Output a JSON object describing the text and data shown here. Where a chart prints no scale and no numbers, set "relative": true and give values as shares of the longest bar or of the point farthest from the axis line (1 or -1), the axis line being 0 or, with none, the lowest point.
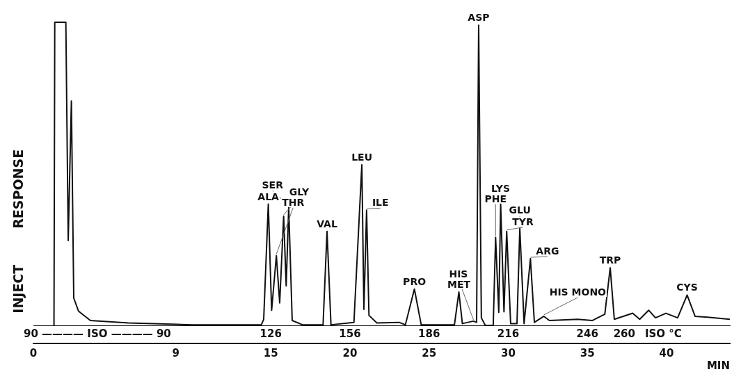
{
  "chart_data": {
    "type": "line",
    "ylabel": "RESPONSE",
    "xlabel": "MIN",
    "color": "#111111",
    "relative": true,
    "grid": false,
    "legend": false,
    "marker": "none",
    "line_style": "solid",
    "xlim": [
      0,
      44
    ],
    "xticks": [
      0,
      9,
      15,
      20,
      25,
      30,
      35,
      40
    ],
    "x2lim": [
      36,
      300
    ],
    "x2ticks": [
      126,
      156,
      186,
      216,
      246,
      260
    ],
    "x": [
      1.3,
      1.35,
      2.05,
      2.2,
      2.4,
      2.55,
      2.85,
      3.6,
      6,
      10,
      14.4,
      14.55,
      14.84,
      15.05,
      15.35,
      15.56,
      15.81,
      15.97,
      16.13,
      16.35,
      17.0,
      18.3,
      18.55,
      18.8,
      20.25,
      20.75,
      20.88,
      21.05,
      21.2,
      21.7,
      23.1,
      23.5,
      24.07,
      24.5,
      26.6,
      26.88,
      27.1,
      27.8,
      28.0,
      28.13,
      28.3,
      28.55,
      29.05,
      29.2,
      29.4,
      29.52,
      29.73,
      29.9,
      30.15,
      30.55,
      30.73,
      31.0,
      31.4,
      31.65,
      32.25,
      32.6,
      34.4,
      35.3,
      36.1,
      36.44,
      36.7,
      37.86,
      38.3,
      38.87,
      39.3,
      39.96,
      40.7,
      41.3,
      41.8,
      42.6,
      44
    ],
    "values": [
      0,
      1,
      1,
      0.28,
      0.74,
      0.09,
      0.047,
      0.016,
      0.008,
      0.002,
      0.002,
      0.02,
      0.4,
      0.05,
      0.23,
      0.074,
      0.36,
      0.13,
      0.39,
      0.016,
      0.002,
      0.002,
      0.31,
      0.002,
      0.01,
      0.53,
      0.053,
      0.38,
      0.033,
      0.008,
      0.01,
      0.002,
      0.12,
      0.002,
      0.002,
      0.11,
      0.006,
      0.014,
      0.01,
      0.99,
      0.025,
      0,
      0,
      0.29,
      0.043,
      0.4,
      0.045,
      0.31,
      0.006,
      0.006,
      0.32,
      0.006,
      0.22,
      0.01,
      0.03,
      0.016,
      0.02,
      0.016,
      0.037,
      0.19,
      0.02,
      0.04,
      0.02,
      0.05,
      0.025,
      0.04,
      0.025,
      0.1,
      0.03,
      0.027,
      0.02
    ],
    "annotations": [
      "INJECT",
      "90 ———— ISO ———— 90",
      "ISO °C",
      {
        "text": "ALA",
        "x": 14.84,
        "y": 0.4
      },
      {
        "text": "THR",
        "x": 15.35,
        "y": 0.23
      },
      {
        "text": "GLY",
        "x": 15.81,
        "y": 0.36
      },
      {
        "text": "SER",
        "x": 16.13,
        "y": 0.39
      },
      {
        "text": "VAL",
        "x": 18.55,
        "y": 0.31
      },
      {
        "text": "LEU",
        "x": 20.75,
        "y": 0.53
      },
      {
        "text": "ILE",
        "x": 21.05,
        "y": 0.38
      },
      {
        "text": "PRO",
        "x": 24.07,
        "y": 0.12
      },
      {
        "text": "MET",
        "x": 26.88,
        "y": 0.11
      },
      {
        "text": "HIS",
        "x": 27.8,
        "y": 0.014
      },
      {
        "text": "ASP",
        "x": 28.13,
        "y": 0.99
      },
      {
        "text": "PHE",
        "x": 29.2,
        "y": 0.29
      },
      {
        "text": "LYS",
        "x": 29.52,
        "y": 0.4
      },
      {
        "text": "TYR",
        "x": 29.9,
        "y": 0.31
      },
      {
        "text": "GLU",
        "x": 30.73,
        "y": 0.32
      },
      {
        "text": "ARG",
        "x": 31.4,
        "y": 0.22
      },
      {
        "text": "HIS MONO",
        "x": 32.25,
        "y": 0.03
      },
      {
        "text": "TRP",
        "x": 36.44,
        "y": 0.19
      },
      {
        "text": "CYS",
        "x": 41.3,
        "y": 0.1
      }
    ]
  }
}
